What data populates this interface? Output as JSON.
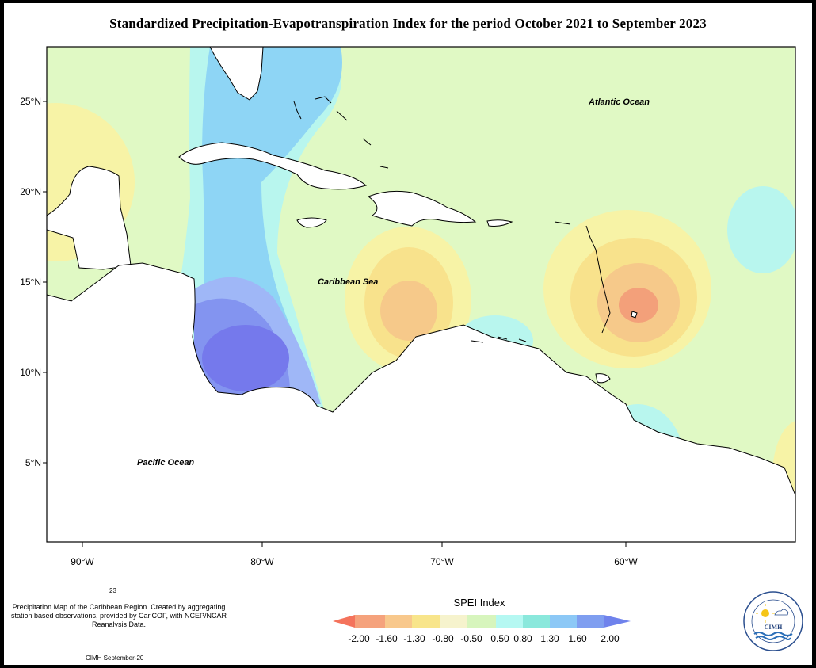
{
  "title": "Standardized Precipitation-Evapotranspiration Index for the period October 2021 to September 2023",
  "lat_labels": [
    "25°N",
    "20°N",
    "15°N",
    "10°N",
    "5°N"
  ],
  "lon_labels": [
    "90°W",
    "80°W",
    "70°W",
    "60°W"
  ],
  "ocean_labels": {
    "atlantic": "Atlantic Ocean",
    "caribbean": "Caribbean Sea",
    "pacific": "Pacific Ocean"
  },
  "caption_number": "23",
  "description": "Precipitation Map of the Caribbean Region. Created by aggregating station based observations, provided by CariCOF, with NCEP/NCAR Reanalysis Data.",
  "footer": "CIMH September-20",
  "legend": {
    "title": "SPEI Index",
    "labels": [
      "-2.00",
      "-1.60",
      "-1.30",
      "-0.80",
      "-0.50",
      "0.50",
      "0.80",
      "1.30",
      "1.60",
      "2.00"
    ],
    "colors": [
      "#f4735c",
      "#f5a27c",
      "#f8c88c",
      "#f8e58b",
      "#f6f3cd",
      "#d7f5bd",
      "#b5f8f2",
      "#8ae8dc",
      "#8cc8f6",
      "#7f9ef0",
      "#6f82ec"
    ]
  },
  "logo": {
    "name": "CIMH",
    "ring_text": "Caribbean Institute for Meteorology and Hydrology"
  },
  "map_fill_colors": {
    "background": "#e0f9c4",
    "dry_light": "#f7f3a6",
    "dry_mid": "#f8e28c",
    "dry_strong": "#f6c98a",
    "dry_core": "#f3a07a",
    "wet_light": "#b8f6ee",
    "wet_mid": "#8ae8dc",
    "wet_blue": "#8ed5f5",
    "wet_strong": "#9fb7f7",
    "wet_deep": "#8394f0",
    "wet_core": "#7579ec",
    "land": "#ffffff"
  }
}
